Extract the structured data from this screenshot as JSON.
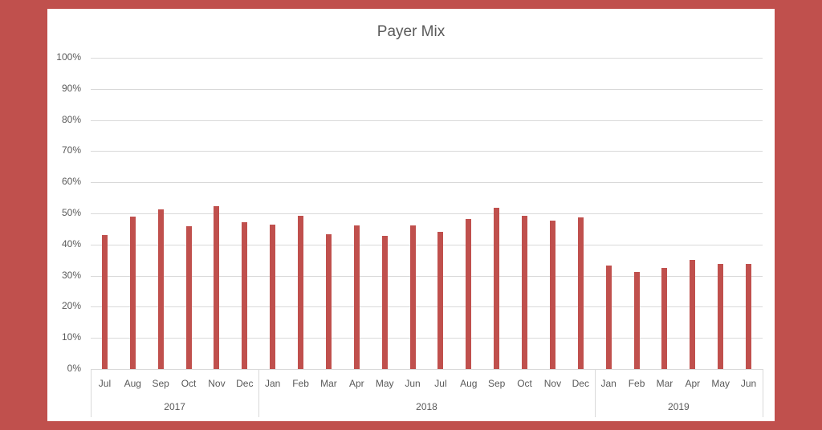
{
  "chart_data": {
    "type": "bar",
    "title": "Payer Mix",
    "xlabel": "",
    "ylabel": "",
    "ylim": [
      0,
      100
    ],
    "yticks": [
      "0%",
      "10%",
      "20%",
      "30%",
      "40%",
      "50%",
      "60%",
      "70%",
      "80%",
      "90%",
      "100%"
    ],
    "grid": true,
    "legend": null,
    "bar_color": "#c0504d",
    "background_color": "#c0504d",
    "categories": [
      "Jul",
      "Aug",
      "Sep",
      "Oct",
      "Nov",
      "Dec",
      "Jan",
      "Feb",
      "Mar",
      "Apr",
      "May",
      "Jun",
      "Jul",
      "Aug",
      "Sep",
      "Oct",
      "Nov",
      "Dec",
      "Jan",
      "Feb",
      "Mar",
      "Apr",
      "May",
      "Jun"
    ],
    "groups": [
      {
        "label": "2017",
        "start": 0,
        "count": 6
      },
      {
        "label": "2018",
        "start": 6,
        "count": 12
      },
      {
        "label": "2019",
        "start": 18,
        "count": 6
      }
    ],
    "values": [
      43,
      49,
      51.3,
      45.8,
      52.2,
      47.2,
      46.4,
      49.2,
      43.3,
      46.1,
      42.7,
      46.1,
      44.1,
      48.3,
      51.8,
      49.2,
      47.7,
      48.6,
      33.3,
      31.2,
      32.5,
      35,
      33.8,
      33.8
    ]
  }
}
